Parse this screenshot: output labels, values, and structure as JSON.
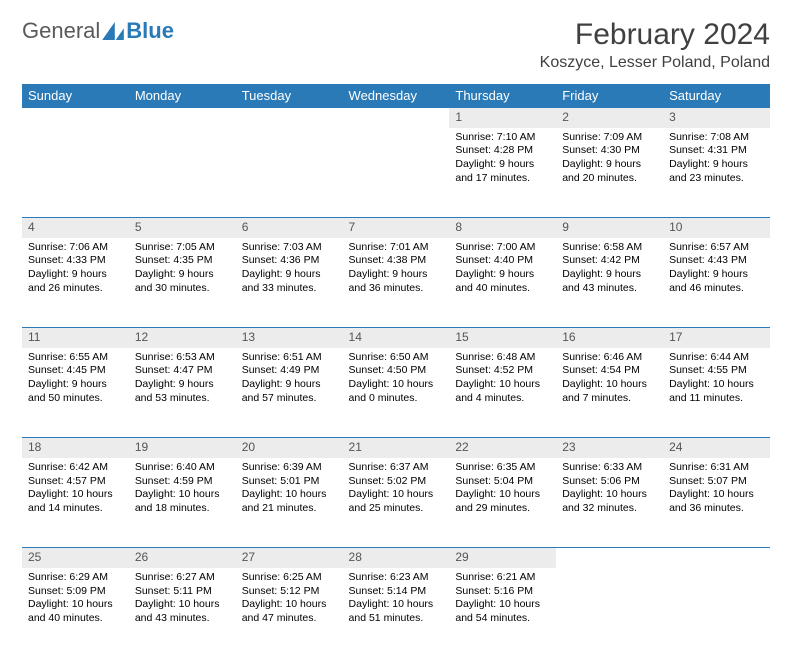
{
  "logo": {
    "part1": "General",
    "part2": "Blue"
  },
  "title": "February 2024",
  "location": "Koszyce, Lesser Poland, Poland",
  "colors": {
    "header_bg": "#2a7ab8",
    "daynum_bg": "#ececec",
    "text": "#000000",
    "title": "#404040"
  },
  "daysOfWeek": [
    "Sunday",
    "Monday",
    "Tuesday",
    "Wednesday",
    "Thursday",
    "Friday",
    "Saturday"
  ],
  "weeks": [
    {
      "nums": [
        "",
        "",
        "",
        "",
        "1",
        "2",
        "3"
      ],
      "cells": [
        null,
        null,
        null,
        null,
        {
          "sunrise": "Sunrise: 7:10 AM",
          "sunset": "Sunset: 4:28 PM",
          "day1": "Daylight: 9 hours",
          "day2": "and 17 minutes."
        },
        {
          "sunrise": "Sunrise: 7:09 AM",
          "sunset": "Sunset: 4:30 PM",
          "day1": "Daylight: 9 hours",
          "day2": "and 20 minutes."
        },
        {
          "sunrise": "Sunrise: 7:08 AM",
          "sunset": "Sunset: 4:31 PM",
          "day1": "Daylight: 9 hours",
          "day2": "and 23 minutes."
        }
      ]
    },
    {
      "nums": [
        "4",
        "5",
        "6",
        "7",
        "8",
        "9",
        "10"
      ],
      "cells": [
        {
          "sunrise": "Sunrise: 7:06 AM",
          "sunset": "Sunset: 4:33 PM",
          "day1": "Daylight: 9 hours",
          "day2": "and 26 minutes."
        },
        {
          "sunrise": "Sunrise: 7:05 AM",
          "sunset": "Sunset: 4:35 PM",
          "day1": "Daylight: 9 hours",
          "day2": "and 30 minutes."
        },
        {
          "sunrise": "Sunrise: 7:03 AM",
          "sunset": "Sunset: 4:36 PM",
          "day1": "Daylight: 9 hours",
          "day2": "and 33 minutes."
        },
        {
          "sunrise": "Sunrise: 7:01 AM",
          "sunset": "Sunset: 4:38 PM",
          "day1": "Daylight: 9 hours",
          "day2": "and 36 minutes."
        },
        {
          "sunrise": "Sunrise: 7:00 AM",
          "sunset": "Sunset: 4:40 PM",
          "day1": "Daylight: 9 hours",
          "day2": "and 40 minutes."
        },
        {
          "sunrise": "Sunrise: 6:58 AM",
          "sunset": "Sunset: 4:42 PM",
          "day1": "Daylight: 9 hours",
          "day2": "and 43 minutes."
        },
        {
          "sunrise": "Sunrise: 6:57 AM",
          "sunset": "Sunset: 4:43 PM",
          "day1": "Daylight: 9 hours",
          "day2": "and 46 minutes."
        }
      ]
    },
    {
      "nums": [
        "11",
        "12",
        "13",
        "14",
        "15",
        "16",
        "17"
      ],
      "cells": [
        {
          "sunrise": "Sunrise: 6:55 AM",
          "sunset": "Sunset: 4:45 PM",
          "day1": "Daylight: 9 hours",
          "day2": "and 50 minutes."
        },
        {
          "sunrise": "Sunrise: 6:53 AM",
          "sunset": "Sunset: 4:47 PM",
          "day1": "Daylight: 9 hours",
          "day2": "and 53 minutes."
        },
        {
          "sunrise": "Sunrise: 6:51 AM",
          "sunset": "Sunset: 4:49 PM",
          "day1": "Daylight: 9 hours",
          "day2": "and 57 minutes."
        },
        {
          "sunrise": "Sunrise: 6:50 AM",
          "sunset": "Sunset: 4:50 PM",
          "day1": "Daylight: 10 hours",
          "day2": "and 0 minutes."
        },
        {
          "sunrise": "Sunrise: 6:48 AM",
          "sunset": "Sunset: 4:52 PM",
          "day1": "Daylight: 10 hours",
          "day2": "and 4 minutes."
        },
        {
          "sunrise": "Sunrise: 6:46 AM",
          "sunset": "Sunset: 4:54 PM",
          "day1": "Daylight: 10 hours",
          "day2": "and 7 minutes."
        },
        {
          "sunrise": "Sunrise: 6:44 AM",
          "sunset": "Sunset: 4:55 PM",
          "day1": "Daylight: 10 hours",
          "day2": "and 11 minutes."
        }
      ]
    },
    {
      "nums": [
        "18",
        "19",
        "20",
        "21",
        "22",
        "23",
        "24"
      ],
      "cells": [
        {
          "sunrise": "Sunrise: 6:42 AM",
          "sunset": "Sunset: 4:57 PM",
          "day1": "Daylight: 10 hours",
          "day2": "and 14 minutes."
        },
        {
          "sunrise": "Sunrise: 6:40 AM",
          "sunset": "Sunset: 4:59 PM",
          "day1": "Daylight: 10 hours",
          "day2": "and 18 minutes."
        },
        {
          "sunrise": "Sunrise: 6:39 AM",
          "sunset": "Sunset: 5:01 PM",
          "day1": "Daylight: 10 hours",
          "day2": "and 21 minutes."
        },
        {
          "sunrise": "Sunrise: 6:37 AM",
          "sunset": "Sunset: 5:02 PM",
          "day1": "Daylight: 10 hours",
          "day2": "and 25 minutes."
        },
        {
          "sunrise": "Sunrise: 6:35 AM",
          "sunset": "Sunset: 5:04 PM",
          "day1": "Daylight: 10 hours",
          "day2": "and 29 minutes."
        },
        {
          "sunrise": "Sunrise: 6:33 AM",
          "sunset": "Sunset: 5:06 PM",
          "day1": "Daylight: 10 hours",
          "day2": "and 32 minutes."
        },
        {
          "sunrise": "Sunrise: 6:31 AM",
          "sunset": "Sunset: 5:07 PM",
          "day1": "Daylight: 10 hours",
          "day2": "and 36 minutes."
        }
      ]
    },
    {
      "nums": [
        "25",
        "26",
        "27",
        "28",
        "29",
        "",
        ""
      ],
      "cells": [
        {
          "sunrise": "Sunrise: 6:29 AM",
          "sunset": "Sunset: 5:09 PM",
          "day1": "Daylight: 10 hours",
          "day2": "and 40 minutes."
        },
        {
          "sunrise": "Sunrise: 6:27 AM",
          "sunset": "Sunset: 5:11 PM",
          "day1": "Daylight: 10 hours",
          "day2": "and 43 minutes."
        },
        {
          "sunrise": "Sunrise: 6:25 AM",
          "sunset": "Sunset: 5:12 PM",
          "day1": "Daylight: 10 hours",
          "day2": "and 47 minutes."
        },
        {
          "sunrise": "Sunrise: 6:23 AM",
          "sunset": "Sunset: 5:14 PM",
          "day1": "Daylight: 10 hours",
          "day2": "and 51 minutes."
        },
        {
          "sunrise": "Sunrise: 6:21 AM",
          "sunset": "Sunset: 5:16 PM",
          "day1": "Daylight: 10 hours",
          "day2": "and 54 minutes."
        },
        null,
        null
      ]
    }
  ]
}
